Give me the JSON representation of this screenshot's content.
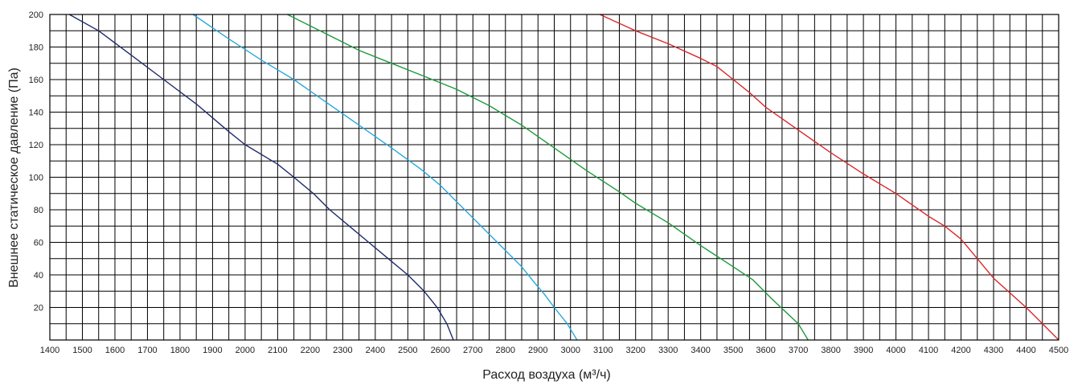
{
  "chart_data": {
    "type": "line",
    "title": "",
    "xlabel": "Расход воздуха (м³/ч)",
    "ylabel": "Внешнее статическое давление (Па)",
    "xlim": [
      1400,
      4500
    ],
    "ylim": [
      0,
      200
    ],
    "x_ticks": [
      1400,
      1500,
      1600,
      1700,
      1800,
      1900,
      2000,
      2100,
      2200,
      2300,
      2400,
      2500,
      2600,
      2700,
      2800,
      2900,
      3000,
      3100,
      3200,
      3300,
      3400,
      3500,
      3600,
      3700,
      3800,
      3900,
      4000,
      4100,
      4200,
      4300,
      4400,
      4500
    ],
    "y_ticks": [
      20,
      40,
      60,
      80,
      100,
      120,
      140,
      160,
      180,
      200
    ],
    "x_minor_step": 50,
    "y_minor_step": 10,
    "grid": true,
    "series": [
      {
        "color": "#1f2a6b",
        "points": [
          [
            1460,
            200
          ],
          [
            1550,
            190
          ],
          [
            1650,
            175
          ],
          [
            1750,
            160
          ],
          [
            1850,
            145
          ],
          [
            1950,
            128
          ],
          [
            2000,
            120
          ],
          [
            2100,
            108
          ],
          [
            2150,
            100
          ],
          [
            2210,
            90
          ],
          [
            2260,
            80
          ],
          [
            2320,
            70
          ],
          [
            2380,
            60
          ],
          [
            2440,
            50
          ],
          [
            2500,
            40
          ],
          [
            2550,
            30
          ],
          [
            2590,
            20
          ],
          [
            2620,
            10
          ],
          [
            2640,
            0
          ]
        ]
      },
      {
        "color": "#29a8dc",
        "points": [
          [
            1840,
            200
          ],
          [
            1950,
            185
          ],
          [
            2050,
            172
          ],
          [
            2150,
            160
          ],
          [
            2250,
            146
          ],
          [
            2350,
            132
          ],
          [
            2450,
            118
          ],
          [
            2540,
            105
          ],
          [
            2600,
            95
          ],
          [
            2650,
            85
          ],
          [
            2700,
            75
          ],
          [
            2750,
            65
          ],
          [
            2800,
            55
          ],
          [
            2850,
            45
          ],
          [
            2890,
            35
          ],
          [
            2920,
            28
          ],
          [
            2950,
            20
          ],
          [
            2990,
            10
          ],
          [
            3020,
            0
          ]
        ]
      },
      {
        "color": "#1a9a3c",
        "points": [
          [
            2130,
            200
          ],
          [
            2250,
            188
          ],
          [
            2350,
            178
          ],
          [
            2450,
            170
          ],
          [
            2550,
            162
          ],
          [
            2650,
            154
          ],
          [
            2750,
            144
          ],
          [
            2850,
            132
          ],
          [
            2950,
            118
          ],
          [
            3050,
            104
          ],
          [
            3150,
            91
          ],
          [
            3200,
            84
          ],
          [
            3300,
            72
          ],
          [
            3400,
            58
          ],
          [
            3500,
            45
          ],
          [
            3560,
            37
          ],
          [
            3620,
            25
          ],
          [
            3700,
            10
          ],
          [
            3730,
            0
          ]
        ]
      },
      {
        "color": "#d9282a",
        "points": [
          [
            3090,
            200
          ],
          [
            3200,
            190
          ],
          [
            3300,
            182
          ],
          [
            3400,
            173
          ],
          [
            3450,
            168
          ],
          [
            3500,
            160
          ],
          [
            3550,
            152
          ],
          [
            3600,
            143
          ],
          [
            3700,
            129
          ],
          [
            3800,
            115
          ],
          [
            3900,
            102
          ],
          [
            4000,
            90
          ],
          [
            4100,
            76
          ],
          [
            4150,
            70
          ],
          [
            4200,
            62
          ],
          [
            4250,
            50
          ],
          [
            4300,
            38
          ],
          [
            4400,
            20
          ],
          [
            4450,
            10
          ],
          [
            4500,
            0
          ]
        ]
      }
    ]
  }
}
